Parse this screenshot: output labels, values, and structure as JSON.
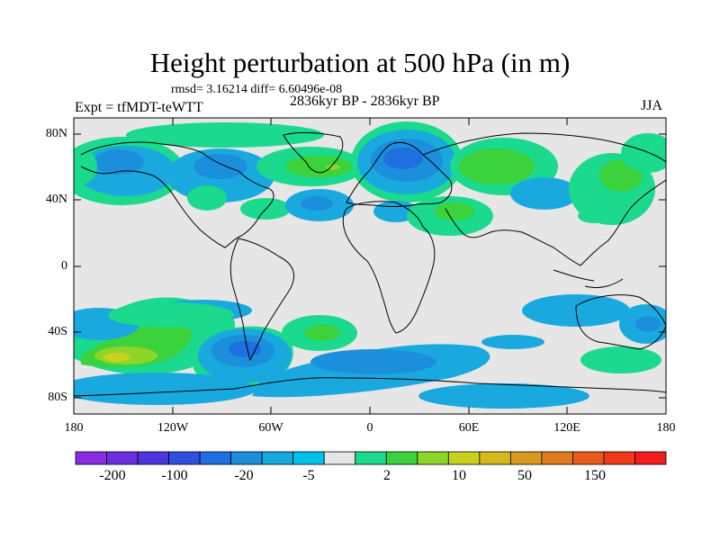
{
  "title": "Height perturbation at 500 hPa (in m)",
  "stats": "rmsd= 3.16214 diff= 6.60496e-08",
  "period": "2836kyr BP - 2836kyr BP",
  "experiment": "Expt = tfMDT-teWTT",
  "season": "JJA",
  "latitude_labels": [
    "80N",
    "40N",
    "0",
    "40S",
    "80S"
  ],
  "longitude_labels": [
    "180",
    "120W",
    "60W",
    "0",
    "60E",
    "120E",
    "180"
  ],
  "colorbar": {
    "colors": [
      "#8a2be2",
      "#6a2ee0",
      "#4d36dd",
      "#2f4fe0",
      "#1e6fe0",
      "#1c8fdc",
      "#1aa9df",
      "#00c2e8",
      "#e6e6e6",
      "#1bd98d",
      "#3bd23b",
      "#8ed52a",
      "#c8d21e",
      "#d6b81c",
      "#d99a1d",
      "#e07b1f",
      "#e85a1e",
      "#ef3a1c",
      "#f31d1d"
    ],
    "tick_labels": [
      "-200",
      "-100",
      "-20",
      "-5",
      "2",
      "10",
      "50",
      "150"
    ]
  },
  "colors": {
    "land_background": "#e6e6e6",
    "coast": "#000000"
  }
}
